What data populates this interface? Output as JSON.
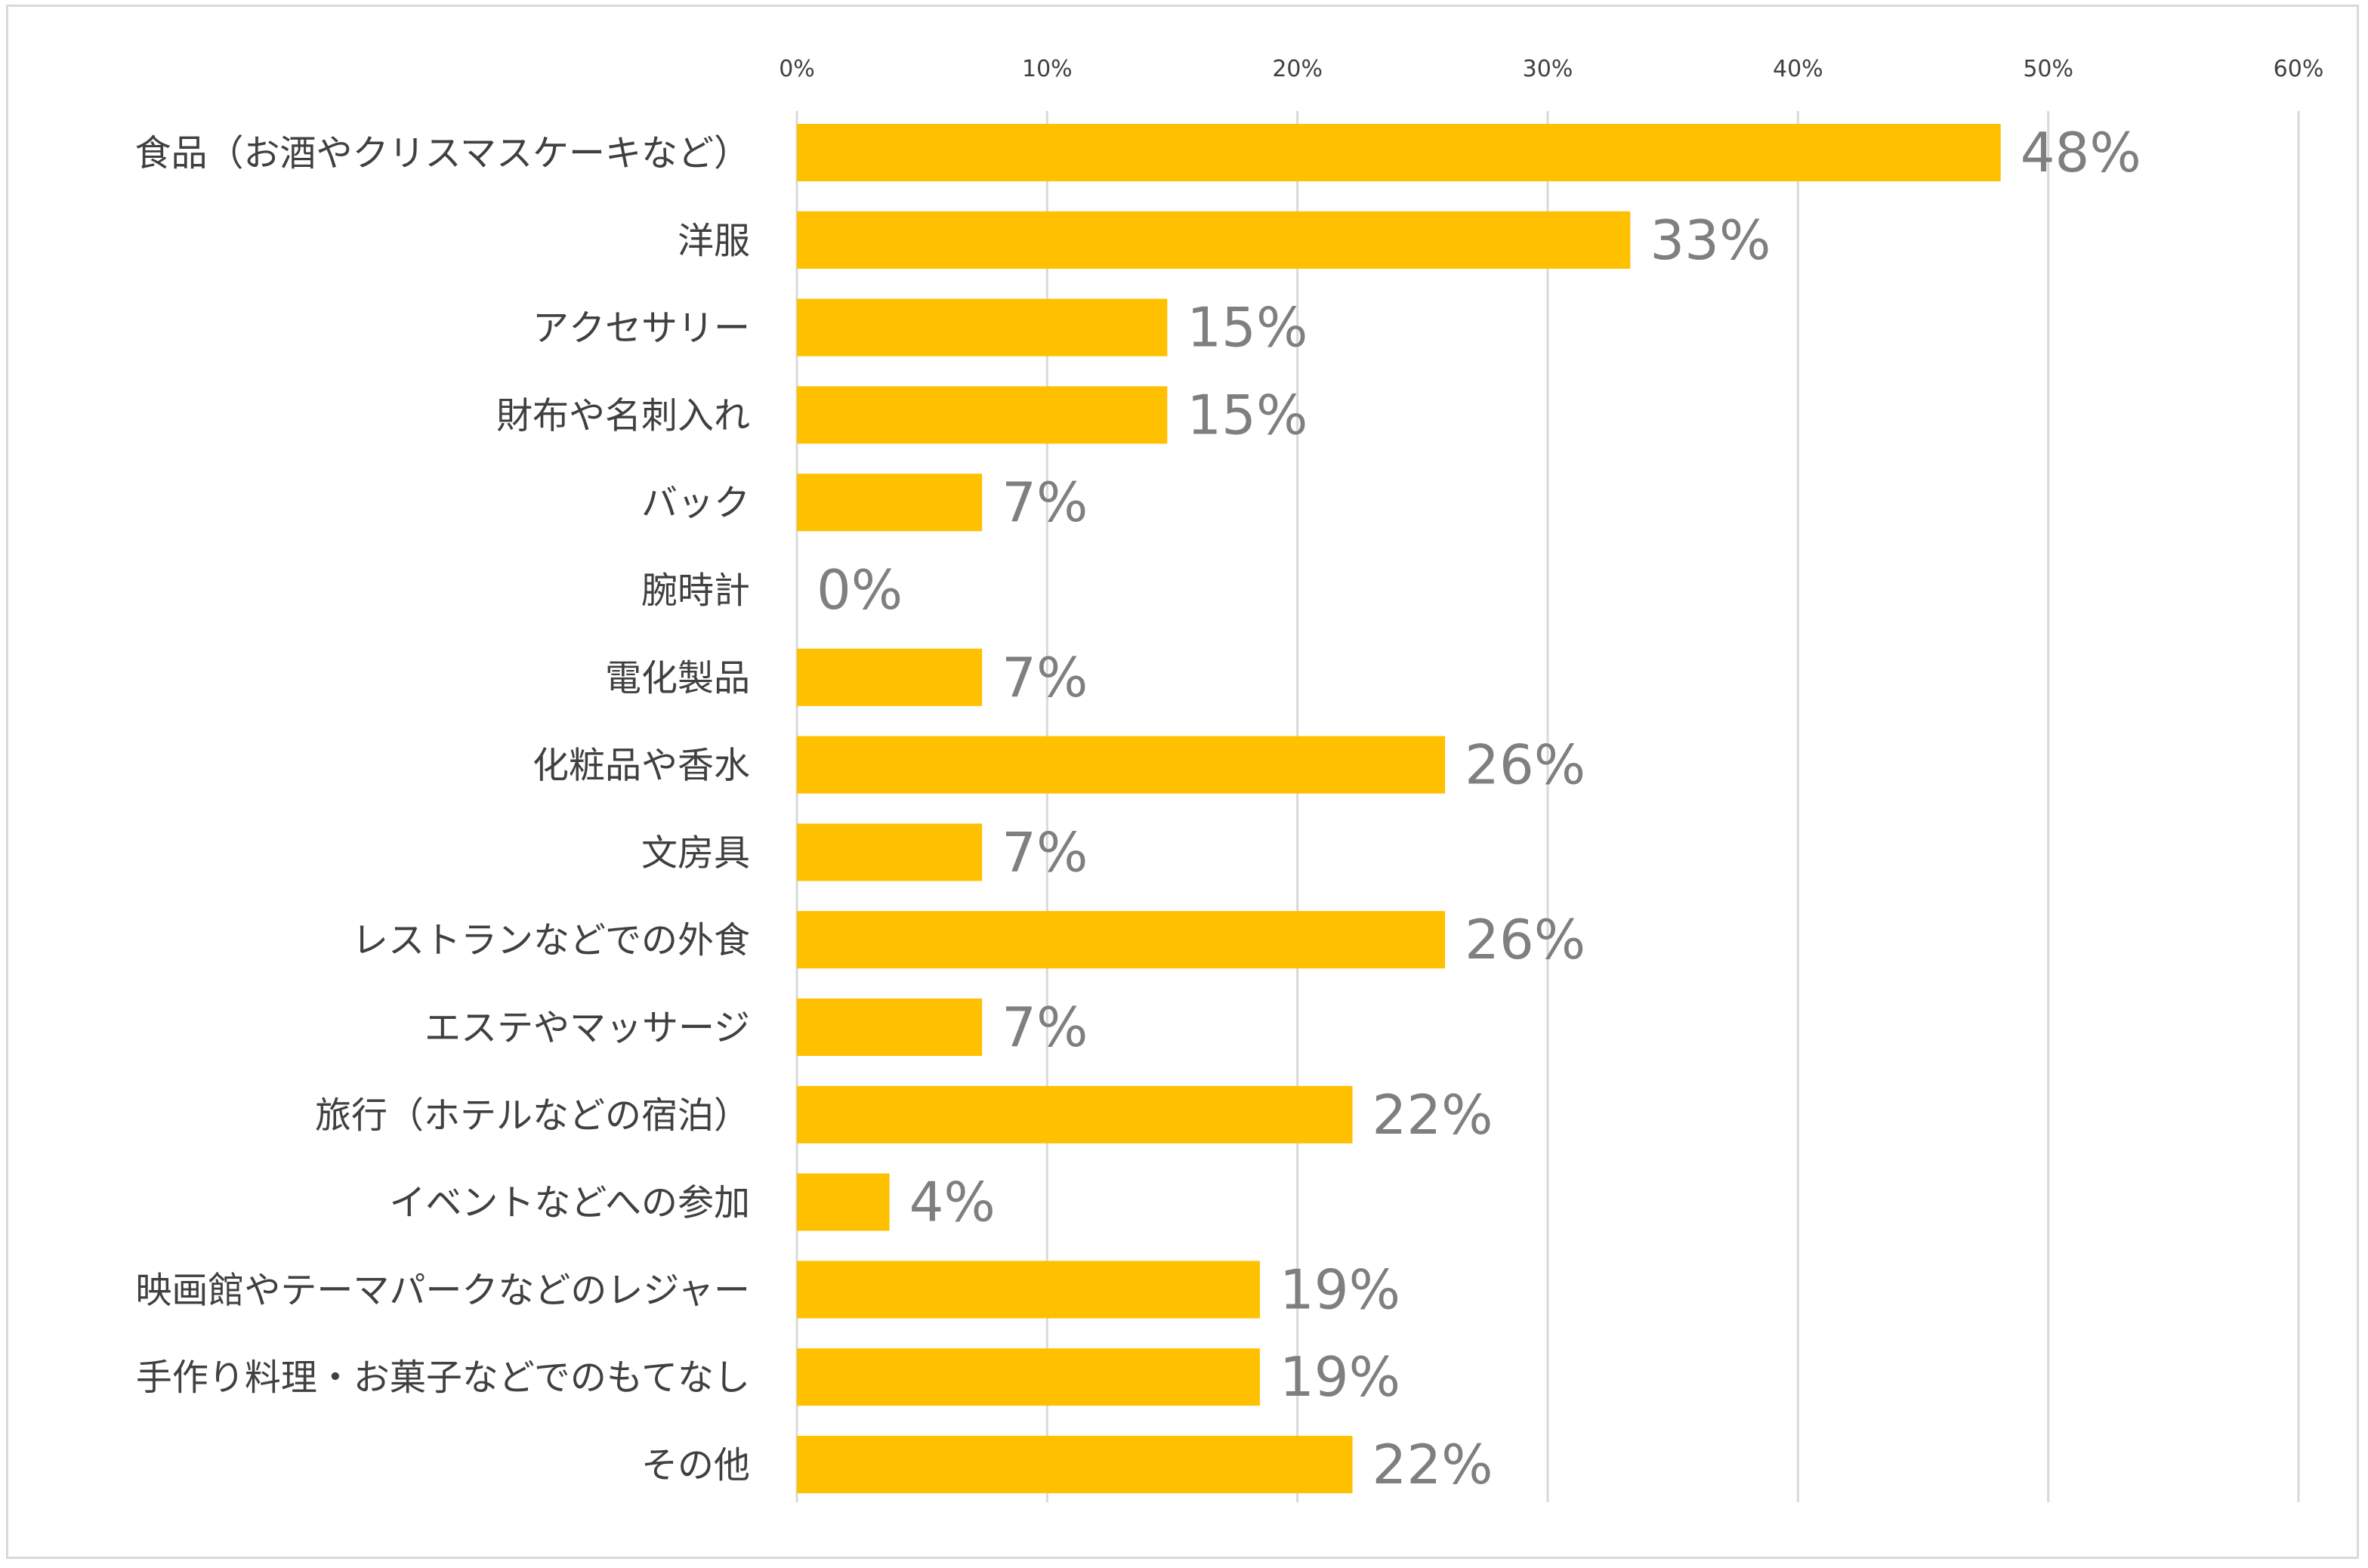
{
  "chart_data": {
    "type": "bar",
    "orientation": "horizontal",
    "categories": [
      "食品（お酒やクリスマスケーキなど）",
      "洋服",
      "アクセサリー",
      "財布や名刺入れ",
      "バック",
      "腕時計",
      "電化製品",
      "化粧品や香水",
      "文房具",
      "レストランなどでの外食",
      "エステやマッサージ",
      "旅行（ホテルなどの宿泊）",
      "イベントなどへの参加",
      "映画館やテーマパークなどのレジャー",
      "手作り料理・お菓子などでのもてなし",
      "その他"
    ],
    "values": [
      48.1,
      33.3,
      14.8,
      14.8,
      7.4,
      0,
      7.4,
      25.9,
      7.4,
      25.9,
      7.4,
      22.2,
      3.7,
      18.5,
      18.5,
      22.2
    ],
    "data_labels": [
      "48%",
      "33%",
      "15%",
      "15%",
      "7%",
      "0%",
      "7%",
      "26%",
      "7%",
      "26%",
      "7%",
      "22%",
      "4%",
      "19%",
      "19%",
      "22%"
    ],
    "x_ticks": [
      "0%",
      "10%",
      "20%",
      "30%",
      "40%",
      "50%",
      "60%"
    ],
    "xlim": [
      0,
      60
    ],
    "x_axis_position": "top",
    "grid": true,
    "legend": "none",
    "bar_color": "#FFC000",
    "label_color": "#7F7F7F",
    "title": "",
    "xlabel": "",
    "ylabel": ""
  }
}
